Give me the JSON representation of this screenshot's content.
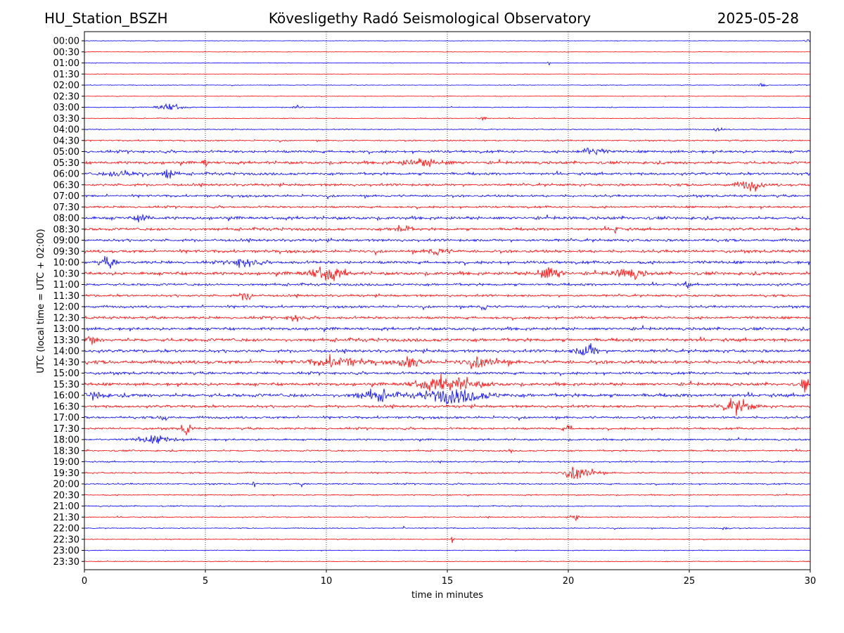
{
  "header": {
    "station": "HU_Station_BSZH",
    "title": "Kövesligethy Radó Seismological Observatory",
    "date": "2025-05-28"
  },
  "chart_data": {
    "type": "line",
    "chart_kind": "helicorder",
    "xlabel": "time in minutes",
    "ylabel": "UTC (local time = UTC + 02:00)",
    "xlim": [
      0,
      30
    ],
    "x_ticks": [
      "0",
      "5",
      "10",
      "15",
      "20",
      "25",
      "30"
    ],
    "grid": "vertical dotted at 5-minute ticks",
    "row_labels": [
      "00:00",
      "00:30",
      "01:00",
      "01:30",
      "02:00",
      "02:30",
      "03:00",
      "03:30",
      "04:00",
      "04:30",
      "05:00",
      "05:30",
      "06:00",
      "06:30",
      "07:00",
      "07:30",
      "08:00",
      "08:30",
      "09:00",
      "09:30",
      "10:00",
      "10:30",
      "11:00",
      "11:30",
      "12:00",
      "12:30",
      "13:00",
      "13:30",
      "14:00",
      "14:30",
      "15:00",
      "15:30",
      "16:00",
      "16:30",
      "17:00",
      "17:30",
      "18:00",
      "18:30",
      "19:00",
      "19:30",
      "20:00",
      "20:30",
      "21:00",
      "21:30",
      "22:00",
      "22:30",
      "23:00",
      "23:30"
    ],
    "colors": {
      "even_rows": "#0000ff",
      "odd_rows": "#ff0000"
    },
    "noise_level": [
      0.3,
      0.3,
      0.4,
      0.3,
      0.4,
      0.4,
      0.5,
      0.5,
      0.6,
      0.8,
      1.6,
      1.7,
      1.6,
      1.5,
      1.4,
      1.3,
      1.8,
      1.7,
      1.6,
      1.7,
      1.8,
      1.9,
      1.5,
      1.4,
      1.4,
      1.6,
      1.7,
      2.0,
      1.8,
      2.1,
      1.6,
      1.8,
      2.1,
      1.6,
      1.4,
      1.3,
      1.1,
      1.0,
      0.9,
      0.9,
      0.9,
      0.7,
      0.7,
      0.7,
      0.6,
      0.6,
      0.5,
      0.5
    ],
    "events": [
      {
        "row": 0,
        "minute": 29.9,
        "amp": 2,
        "dur": 0.3
      },
      {
        "row": 2,
        "minute": 19.2,
        "amp": 4,
        "dur": 0.1
      },
      {
        "row": 4,
        "minute": 28.0,
        "amp": 4,
        "dur": 0.3
      },
      {
        "row": 6,
        "minute": 3.5,
        "amp": 5,
        "dur": 1.0
      },
      {
        "row": 6,
        "minute": 8.8,
        "amp": 2.5,
        "dur": 0.4
      },
      {
        "row": 7,
        "minute": 16.5,
        "amp": 3,
        "dur": 0.4
      },
      {
        "row": 8,
        "minute": 26.2,
        "amp": 3,
        "dur": 0.4
      },
      {
        "row": 10,
        "minute": 21.0,
        "amp": 5,
        "dur": 0.9
      },
      {
        "row": 11,
        "minute": 5.0,
        "amp": 6,
        "dur": 0.2
      },
      {
        "row": 11,
        "minute": 14.0,
        "amp": 4,
        "dur": 2.0
      },
      {
        "row": 12,
        "minute": 3.5,
        "amp": 8,
        "dur": 0.5
      },
      {
        "row": 12,
        "minute": 1.8,
        "amp": 4,
        "dur": 1.6
      },
      {
        "row": 13,
        "minute": 27.5,
        "amp": 6,
        "dur": 1.0
      },
      {
        "row": 16,
        "minute": 2.4,
        "amp": 6,
        "dur": 0.5
      },
      {
        "row": 17,
        "minute": 13.1,
        "amp": 7,
        "dur": 0.6
      },
      {
        "row": 17,
        "minute": 22.0,
        "amp": 5,
        "dur": 0.3
      },
      {
        "row": 19,
        "minute": 14.6,
        "amp": 5,
        "dur": 0.8
      },
      {
        "row": 20,
        "minute": 1.0,
        "amp": 6,
        "dur": 0.6
      },
      {
        "row": 20,
        "minute": 6.6,
        "amp": 6,
        "dur": 1.0
      },
      {
        "row": 21,
        "minute": 10.0,
        "amp": 8,
        "dur": 1.5
      },
      {
        "row": 21,
        "minute": 19.2,
        "amp": 8,
        "dur": 1.0
      },
      {
        "row": 21,
        "minute": 22.5,
        "amp": 6,
        "dur": 1.2
      },
      {
        "row": 22,
        "minute": 24.9,
        "amp": 6,
        "dur": 0.2
      },
      {
        "row": 23,
        "minute": 6.7,
        "amp": 6,
        "dur": 0.5
      },
      {
        "row": 24,
        "minute": 16.5,
        "amp": 5,
        "dur": 0.3
      },
      {
        "row": 25,
        "minute": 8.7,
        "amp": 5,
        "dur": 0.5
      },
      {
        "row": 27,
        "minute": 0.3,
        "amp": 7,
        "dur": 0.4
      },
      {
        "row": 28,
        "minute": 20.8,
        "amp": 9,
        "dur": 0.8
      },
      {
        "row": 29,
        "minute": 10.5,
        "amp": 6,
        "dur": 2.0
      },
      {
        "row": 29,
        "minute": 13.5,
        "amp": 6,
        "dur": 1.0
      },
      {
        "row": 29,
        "minute": 16.5,
        "amp": 6,
        "dur": 1.5
      },
      {
        "row": 31,
        "minute": 15.0,
        "amp": 9,
        "dur": 2.5
      },
      {
        "row": 31,
        "minute": 29.8,
        "amp": 9,
        "dur": 0.3
      },
      {
        "row": 32,
        "minute": 15.3,
        "amp": 9,
        "dur": 2.5
      },
      {
        "row": 32,
        "minute": 12.0,
        "amp": 6,
        "dur": 1.5
      },
      {
        "row": 32,
        "minute": 0.5,
        "amp": 6,
        "dur": 0.6
      },
      {
        "row": 33,
        "minute": 27.0,
        "amp": 9,
        "dur": 1.2
      },
      {
        "row": 34,
        "minute": 3.3,
        "amp": 4,
        "dur": 0.4
      },
      {
        "row": 35,
        "minute": 4.2,
        "amp": 8,
        "dur": 0.4
      },
      {
        "row": 35,
        "minute": 20.0,
        "amp": 4,
        "dur": 0.4
      },
      {
        "row": 36,
        "minute": 3.0,
        "amp": 5,
        "dur": 1.5
      },
      {
        "row": 37,
        "minute": 17.6,
        "amp": 5,
        "dur": 0.1
      },
      {
        "row": 39,
        "minute": 20.5,
        "amp": 9,
        "dur": 1.2
      },
      {
        "row": 40,
        "minute": 7.0,
        "amp": 5,
        "dur": 0.1
      },
      {
        "row": 40,
        "minute": 9.0,
        "amp": 3,
        "dur": 0.1
      },
      {
        "row": 43,
        "minute": 20.3,
        "amp": 5,
        "dur": 0.3
      },
      {
        "row": 44,
        "minute": 26.5,
        "amp": 4,
        "dur": 0.3
      },
      {
        "row": 44,
        "minute": 13.2,
        "amp": 3,
        "dur": 0.1
      },
      {
        "row": 45,
        "minute": 15.2,
        "amp": 4,
        "dur": 0.1
      }
    ]
  }
}
